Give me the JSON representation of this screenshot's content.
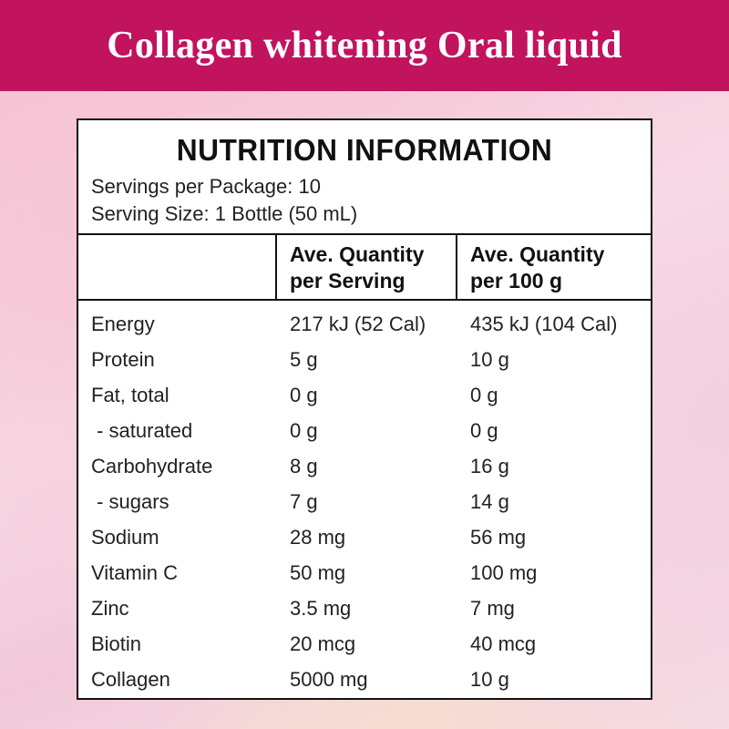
{
  "banner": {
    "title": "Collagen whitening Oral liquid"
  },
  "panel": {
    "title": "NUTRITION INFORMATION",
    "servings": "Servings per Package: 10",
    "serving_size": "Serving Size: 1 Bottle (50 mL)",
    "headers": {
      "per_serving_line1": "Ave. Quantity",
      "per_serving_line2": "per Serving",
      "per_100g_line1": "Ave. Quantity",
      "per_100g_line2": "per 100 g"
    },
    "rows": [
      {
        "name": "Energy",
        "serving": "217 kJ (52 Cal)",
        "per100": "435 kJ (104 Cal)"
      },
      {
        "name": "Protein",
        "serving": "5 g",
        "per100": "10 g"
      },
      {
        "name": "Fat, total",
        "serving": "0 g",
        "per100": "0 g"
      },
      {
        "name": " - saturated",
        "serving": "0 g",
        "per100": "0 g"
      },
      {
        "name": "Carbohydrate",
        "serving": "8 g",
        "per100": "16 g"
      },
      {
        "name": " - sugars",
        "serving": "7 g",
        "per100": "14 g"
      },
      {
        "name": "Sodium",
        "serving": "28 mg",
        "per100": "56 mg"
      },
      {
        "name": "Vitamin C",
        "serving": "50 mg",
        "per100": "100 mg"
      },
      {
        "name": "Zinc",
        "serving": "3.5 mg",
        "per100": "7 mg"
      },
      {
        "name": "Biotin",
        "serving": "20 mcg",
        "per100": "40 mcg"
      },
      {
        "name": "Collagen",
        "serving": "5000 mg",
        "per100": "10 g"
      }
    ]
  },
  "colors": {
    "banner": "#c2135f",
    "text": "#111111",
    "background": "#f6c6d6"
  }
}
